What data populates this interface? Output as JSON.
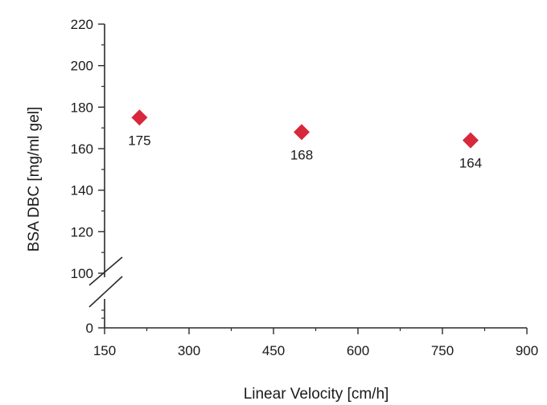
{
  "chart_data": {
    "type": "scatter",
    "title": "",
    "xlabel": "Linear Velocity [cm/h]",
    "ylabel": "BSA DBC [mg/ml gel]",
    "xlim": [
      150,
      900
    ],
    "x_ticks": [
      "150",
      "300",
      "450",
      "600",
      "750",
      "900"
    ],
    "y_ticks": [
      "0",
      "100",
      "120",
      "140",
      "160",
      "180",
      "200",
      "220"
    ],
    "ylim_upper": [
      100,
      220
    ],
    "y_axis_break": true,
    "marker": "diamond",
    "marker_color": "#d7283c",
    "grid": false,
    "points": [
      {
        "x": 212,
        "y": 175,
        "label": "175"
      },
      {
        "x": 500,
        "y": 168,
        "label": "168"
      },
      {
        "x": 800,
        "y": 164,
        "label": "164"
      }
    ]
  }
}
